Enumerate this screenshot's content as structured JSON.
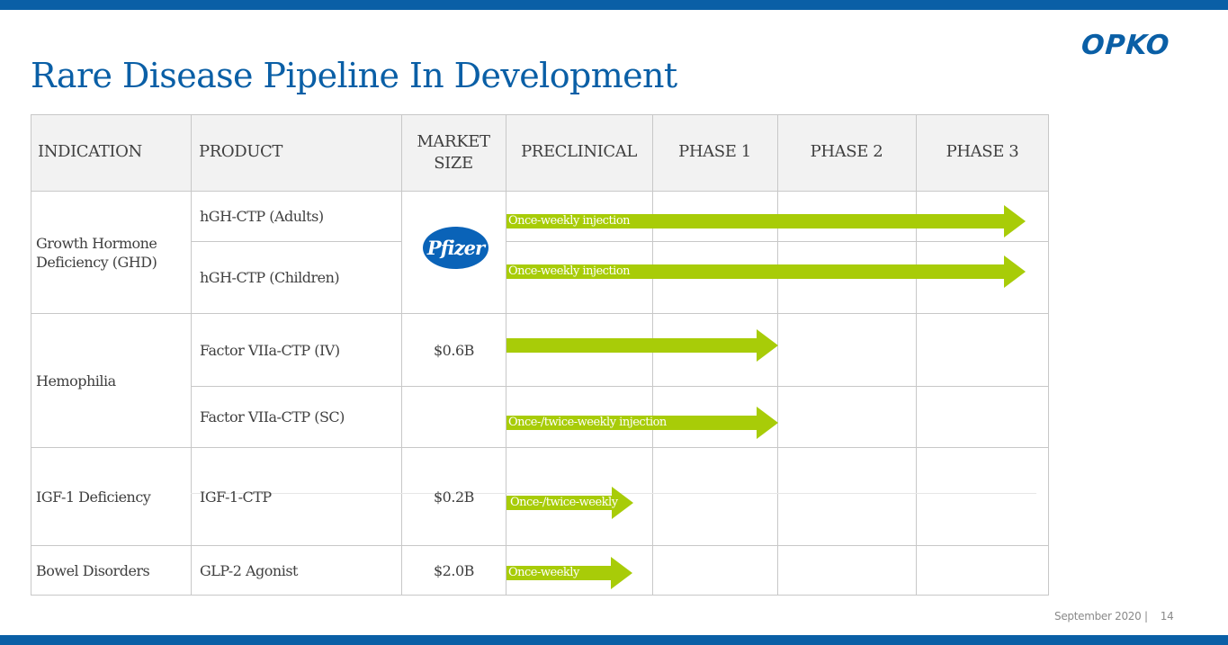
{
  "title": "Rare Disease Pipeline In Development",
  "logo_text": "OPKO",
  "partner_logo_text": "Pfizer",
  "footer": {
    "date": "September 2020 |",
    "page": "14"
  },
  "colors": {
    "brand_blue": "#0a5fa6",
    "arrow_green": "#a8cc08",
    "header_gray": "#f2f2f2"
  },
  "headers": {
    "indication": "INDICATION",
    "product": "PRODUCT",
    "market_size_1": "MARKET",
    "market_size_2": "SIZE",
    "preclinical": "PRECLINICAL",
    "phase1": "PHASE 1",
    "phase2": "PHASE 2",
    "phase3": "PHASE 3"
  },
  "indications": {
    "ghd_1": "Growth Hormone",
    "ghd_2": "Deficiency (GHD)",
    "hemophilia": "Hemophilia",
    "igf": "IGF-1 Deficiency",
    "bowel": "Bowel Disorders"
  },
  "products": {
    "hgh_adults": "hGH-CTP (Adults)",
    "hgh_children": "hGH-CTP (Children)",
    "f7_iv": "Factor VIIa-CTP (IV)",
    "f7_sc": "Factor VIIa-CTP (SC)",
    "igf_ctp": "IGF-1-CTP",
    "glp2": "GLP-2 Agonist"
  },
  "market_sizes": {
    "f7_iv": "$0.6B",
    "igf_ctp": "$0.2B",
    "glp2": "$2.0B"
  },
  "arrows": {
    "hgh_adults": "Once-weekly injection",
    "hgh_children": "Once-weekly injection",
    "f7_iv": "",
    "f7_sc": "Once-/twice-weekly injection",
    "igf_ctp": "Once-/twice-weekly",
    "glp2": "Once-weekly"
  }
}
